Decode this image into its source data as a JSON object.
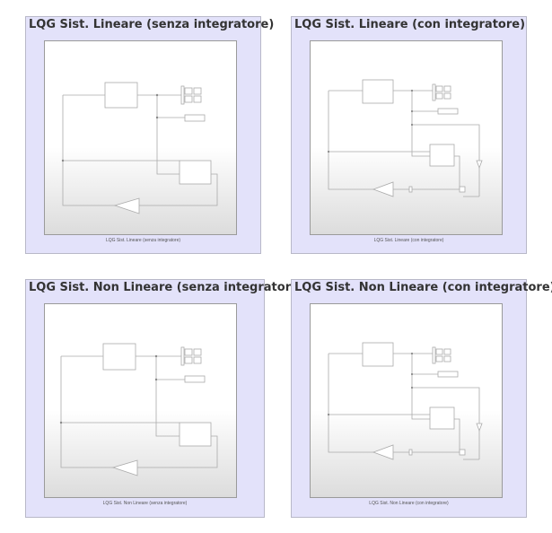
{
  "panels": [
    {
      "title": "LQG Sist. Lineare (senza integratore)",
      "caption": "LQG Sist. Lineare (senza integratore)",
      "variant": "senza"
    },
    {
      "title": "LQG Sist. Lineare (con integratore)",
      "caption": "LQG Sist. Lineare (con integratore)",
      "variant": "con"
    },
    {
      "title": "LQG Sist. Non Lineare (senza integratore)",
      "caption": "LQG Sist. Non Lineare (senza integratore)",
      "variant": "senza"
    },
    {
      "title": "LQG Sist. Non Lineare (con integratore)",
      "caption": "LQG Sist. Non Lineare (con integratore)",
      "variant": "con"
    }
  ],
  "colors": {
    "panel_background": "#e3e2fa",
    "title_text": "#333333",
    "diagram_lines": "#aaaaaa"
  }
}
